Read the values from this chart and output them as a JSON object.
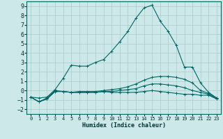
{
  "xlabel": "Humidex (Indice chaleur)",
  "background_color": "#cde8e8",
  "grid_color": "#aacccc",
  "line_color": "#006666",
  "xlim": [
    -0.5,
    23.5
  ],
  "ylim": [
    -2.5,
    9.5
  ],
  "yticks": [
    -2,
    -1,
    0,
    1,
    2,
    3,
    4,
    5,
    6,
    7,
    8,
    9
  ],
  "xticks": [
    0,
    1,
    2,
    3,
    4,
    5,
    6,
    7,
    8,
    9,
    10,
    11,
    12,
    13,
    14,
    15,
    16,
    17,
    18,
    19,
    20,
    21,
    22,
    23
  ],
  "series": [
    {
      "x": [
        0,
        1,
        2,
        3,
        4,
        5,
        6,
        7,
        8,
        9,
        10,
        11,
        12,
        13,
        14,
        15,
        16,
        17,
        18,
        19,
        20,
        21,
        22,
        23
      ],
      "y": [
        -0.7,
        -0.8,
        -0.7,
        0.1,
        1.3,
        2.7,
        2.6,
        2.6,
        3.0,
        3.3,
        4.2,
        5.2,
        6.3,
        7.7,
        8.8,
        9.1,
        7.4,
        6.3,
        4.8,
        2.5,
        2.5,
        0.8,
        -0.2,
        -0.8
      ]
    },
    {
      "x": [
        0,
        1,
        2,
        3,
        4,
        5,
        6,
        7,
        8,
        9,
        10,
        11,
        12,
        13,
        14,
        15,
        16,
        17,
        18,
        19,
        20,
        21,
        22,
        23
      ],
      "y": [
        -0.7,
        -1.2,
        -0.8,
        0.0,
        -0.1,
        -0.2,
        -0.1,
        -0.1,
        -0.1,
        0.0,
        0.1,
        0.2,
        0.4,
        0.7,
        1.1,
        1.4,
        1.5,
        1.5,
        1.4,
        1.2,
        0.8,
        0.0,
        -0.3,
        -0.8
      ]
    },
    {
      "x": [
        0,
        1,
        2,
        3,
        4,
        5,
        6,
        7,
        8,
        9,
        10,
        11,
        12,
        13,
        14,
        15,
        16,
        17,
        18,
        19,
        20,
        21,
        22,
        23
      ],
      "y": [
        -0.7,
        -1.2,
        -0.9,
        -0.1,
        -0.1,
        -0.2,
        -0.2,
        -0.2,
        -0.2,
        -0.1,
        -0.1,
        0.0,
        0.1,
        0.2,
        0.5,
        0.7,
        0.7,
        0.6,
        0.5,
        0.3,
        0.0,
        -0.2,
        -0.4,
        -0.9
      ]
    },
    {
      "x": [
        0,
        1,
        2,
        3,
        4,
        5,
        6,
        7,
        8,
        9,
        10,
        11,
        12,
        13,
        14,
        15,
        16,
        17,
        18,
        19,
        20,
        21,
        22,
        23
      ],
      "y": [
        -0.7,
        -1.2,
        -0.9,
        -0.1,
        -0.1,
        -0.2,
        -0.2,
        -0.2,
        -0.2,
        -0.1,
        -0.2,
        -0.2,
        -0.2,
        -0.2,
        -0.1,
        0.0,
        -0.1,
        -0.2,
        -0.3,
        -0.4,
        -0.4,
        -0.5,
        -0.5,
        -0.9
      ]
    }
  ]
}
